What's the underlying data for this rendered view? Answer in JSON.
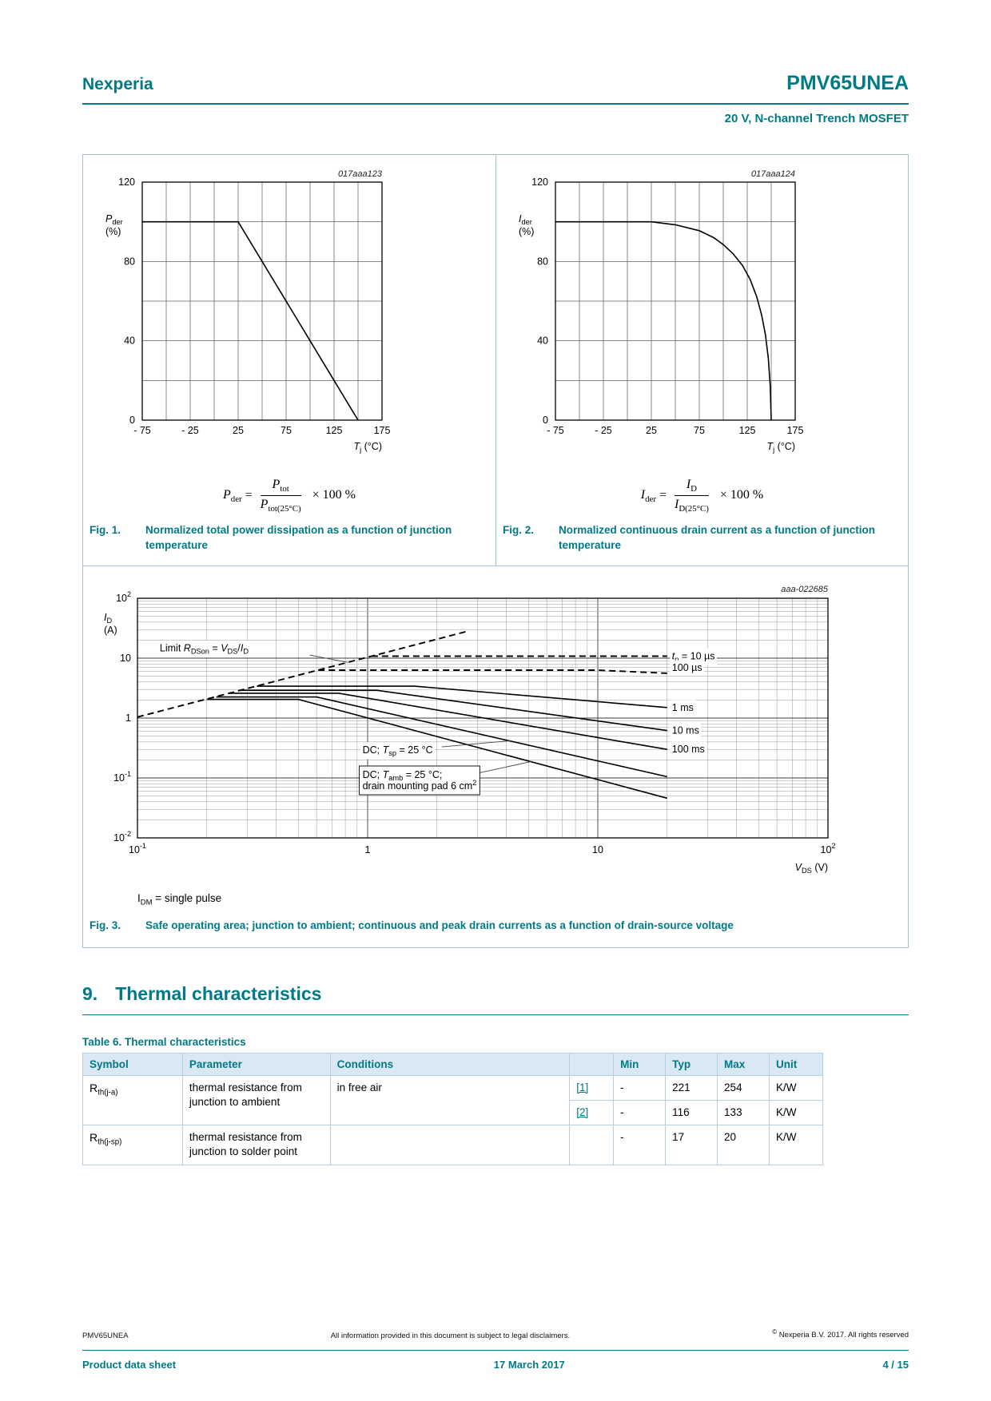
{
  "header": {
    "brand": "Nexperia",
    "part": "PMV65UNEA",
    "subtitle": "20 V, N-channel Trench MOSFET"
  },
  "figures": {
    "fig1": {
      "caption_label": "Fig. 1.",
      "caption": "Normalized total power dissipation as a function of junction temperature",
      "formula": {
        "lhs_main": "P",
        "lhs_sub": "der",
        "equals": "=",
        "num_main": "P",
        "num_sub": "tot",
        "den_main": "P",
        "den_sub": "tot(25°C)",
        "suffix": "× 100  %"
      }
    },
    "fig2": {
      "caption_label": "Fig. 2.",
      "caption": "Normalized continuous drain current as a function of junction temperature",
      "formula": {
        "lhs_main": "I",
        "lhs_sub": "der",
        "equals": "=",
        "num_main": "I",
        "num_sub": "D",
        "den_main": "I",
        "den_sub": "D(25°C)",
        "suffix": "× 100  %"
      }
    },
    "fig3": {
      "caption_label": "Fig. 3.",
      "caption": "Safe operating area; junction to ambient; continuous and peak drain currents as a function of drain-source voltage",
      "note": {
        "main": "I",
        "sub": "DM",
        "rest": " = single pulse"
      }
    }
  },
  "chart_data": [
    {
      "id": "fig1",
      "type": "line",
      "code": "017aaa123",
      "xlim": [
        -75,
        175
      ],
      "ylim": [
        0,
        120
      ],
      "xgrid_step": 25,
      "ygrid_step": 20,
      "xticks": [
        {
          "v": -75,
          "label": "- 75"
        },
        {
          "v": -25,
          "label": "- 25"
        },
        {
          "v": 25,
          "label": "25"
        },
        {
          "v": 75,
          "label": "75"
        },
        {
          "v": 125,
          "label": "125"
        },
        {
          "v": 175,
          "label": "175"
        }
      ],
      "yticks": [
        {
          "v": 0,
          "label": "0"
        },
        {
          "v": 40,
          "label": "40"
        },
        {
          "v": 80,
          "label": "80"
        },
        {
          "v": 120,
          "label": "120"
        }
      ],
      "xlabel": {
        "main": "T",
        "sub": "j",
        "unit": " (°C)"
      },
      "ylabel": {
        "main": "P",
        "sub": "der",
        "unit": "(%)"
      },
      "series": [
        {
          "name": "pder-curve",
          "dash": false,
          "points": [
            [
              -75,
              100
            ],
            [
              25,
              100
            ],
            [
              150,
              0
            ]
          ]
        }
      ]
    },
    {
      "id": "fig2",
      "type": "line",
      "code": "017aaa124",
      "xlim": [
        -75,
        175
      ],
      "ylim": [
        0,
        120
      ],
      "xgrid_step": 25,
      "ygrid_step": 20,
      "xticks": [
        {
          "v": -75,
          "label": "- 75"
        },
        {
          "v": -25,
          "label": "- 25"
        },
        {
          "v": 25,
          "label": "25"
        },
        {
          "v": 75,
          "label": "75"
        },
        {
          "v": 125,
          "label": "125"
        },
        {
          "v": 175,
          "label": "175"
        }
      ],
      "yticks": [
        {
          "v": 0,
          "label": "0"
        },
        {
          "v": 40,
          "label": "40"
        },
        {
          "v": 80,
          "label": "80"
        },
        {
          "v": 120,
          "label": "120"
        }
      ],
      "xlabel": {
        "main": "T",
        "sub": "j",
        "unit": " (°C)"
      },
      "ylabel": {
        "main": "I",
        "sub": "der",
        "unit": "(%)"
      },
      "series": [
        {
          "name": "ider-curve",
          "dash": false,
          "points": [
            [
              -75,
              100
            ],
            [
              25,
              100
            ],
            [
              50,
              98.5
            ],
            [
              75,
              95.5
            ],
            [
              90,
              92
            ],
            [
              100,
              88.5
            ],
            [
              110,
              84
            ],
            [
              120,
              78
            ],
            [
              128,
              71
            ],
            [
              135,
              62
            ],
            [
              140,
              53
            ],
            [
              144,
              43
            ],
            [
              147,
              31
            ],
            [
              149,
              17
            ],
            [
              150,
              0
            ]
          ]
        }
      ]
    },
    {
      "id": "fig3",
      "type": "loglog",
      "code": "aaa-022685",
      "xlim": [
        0.1,
        100
      ],
      "ylim": [
        0.01,
        100
      ],
      "xticks": [
        {
          "v": 0.1,
          "label": "10",
          "exp": "-1"
        },
        {
          "v": 1,
          "label": "1"
        },
        {
          "v": 10,
          "label": "10"
        },
        {
          "v": 100,
          "label": "10",
          "exp": "2"
        }
      ],
      "yticks": [
        {
          "v": 0.01,
          "label": "10",
          "exp": "-2"
        },
        {
          "v": 0.1,
          "label": "10",
          "exp": "-1"
        },
        {
          "v": 1,
          "label": "1"
        },
        {
          "v": 10,
          "label": "10"
        },
        {
          "v": 100,
          "label": "10",
          "exp": "2"
        }
      ],
      "xlabel": {
        "main": "V",
        "sub": "DS",
        "unit": " (V)"
      },
      "ylabel": {
        "main": "I",
        "sub": "D",
        "unit": "(A)"
      },
      "series": [
        {
          "name": "limit-rdson",
          "dash": true,
          "points": [
            [
              0.1,
              1.04
            ],
            [
              2.7,
              28
            ]
          ]
        },
        {
          "name": "tp-10us",
          "dash": true,
          "points": [
            [
              1.04,
              10.8
            ],
            [
              20,
              10.8
            ]
          ]
        },
        {
          "name": "tp-100us",
          "dash": true,
          "points": [
            [
              0.61,
              6.3
            ],
            [
              10,
              6.3
            ],
            [
              20,
              5.6
            ]
          ]
        },
        {
          "name": "tp-1ms",
          "dash": false,
          "points": [
            [
              0.33,
              3.4
            ],
            [
              1.6,
              3.4
            ],
            [
              20,
              1.5
            ]
          ]
        },
        {
          "name": "tp-10ms",
          "dash": false,
          "points": [
            [
              0.28,
              2.9
            ],
            [
              1.1,
              2.9
            ],
            [
              20,
              0.62
            ]
          ]
        },
        {
          "name": "tp-100ms",
          "dash": false,
          "points": [
            [
              0.25,
              2.6
            ],
            [
              0.75,
              2.6
            ],
            [
              20,
              0.3
            ]
          ]
        },
        {
          "name": "dc-tsp",
          "dash": false,
          "points": [
            [
              0.22,
              2.25
            ],
            [
              0.6,
              2.25
            ],
            [
              20,
              0.105
            ]
          ]
        },
        {
          "name": "dc-tamb",
          "dash": false,
          "points": [
            [
              0.2,
              2.05
            ],
            [
              0.5,
              2.05
            ],
            [
              20,
              0.046
            ]
          ]
        }
      ],
      "line_labels": [
        {
          "name": "label-tp-10us",
          "x": 21,
          "y": 10.8,
          "parts": [
            {
              "t": "t",
              "i": true
            },
            {
              "t": "p",
              "sub": true
            },
            {
              "t": " = 10 µs"
            }
          ]
        },
        {
          "name": "label-tp-100us",
          "x": 21,
          "y": 6.9,
          "parts": [
            {
              "t": "100 µs"
            }
          ]
        },
        {
          "name": "label-tp-1ms",
          "x": 21,
          "y": 1.5,
          "parts": [
            {
              "t": "1 ms"
            }
          ]
        },
        {
          "name": "label-tp-10ms",
          "x": 21,
          "y": 0.62,
          "parts": [
            {
              "t": "10 ms"
            }
          ]
        },
        {
          "name": "label-tp-100ms",
          "x": 21,
          "y": 0.3,
          "parts": [
            {
              "t": "100 ms"
            }
          ]
        }
      ],
      "annotations": [
        {
          "name": "ann-limit-rdson",
          "x": 0.125,
          "y": 13,
          "box": false,
          "lines": [
            [
              {
                "t": "Limit "
              },
              {
                "t": "R",
                "i": true
              },
              {
                "t": "DSon",
                "sub": true
              },
              {
                "t": " = "
              },
              {
                "t": "V",
                "i": true
              },
              {
                "t": "DS",
                "sub": true
              },
              {
                "t": "/"
              },
              {
                "t": "I",
                "i": true
              },
              {
                "t": "D",
                "sub": true
              }
            ]
          ],
          "leader": [
            [
              0.56,
              11.3
            ],
            [
              0.82,
              8.5
            ]
          ]
        },
        {
          "name": "ann-dc-tsp",
          "x": 0.95,
          "y": 0.26,
          "box": false,
          "lines": [
            [
              {
                "t": "DC; "
              },
              {
                "t": "T",
                "i": true
              },
              {
                "t": "sp",
                "sub": true
              },
              {
                "t": " = 25 °C"
              }
            ]
          ],
          "leader": [
            [
              2.1,
              0.33
            ],
            [
              4.2,
              0.42
            ]
          ]
        },
        {
          "name": "ann-dc-tamb",
          "x": 0.95,
          "y": 0.1,
          "box": true,
          "lines": [
            [
              {
                "t": "DC; "
              },
              {
                "t": "T",
                "i": true
              },
              {
                "t": "amb",
                "sub": true
              },
              {
                "t": " = 25 °C;"
              }
            ],
            [
              {
                "t": "drain mounting pad 6 cm"
              },
              {
                "t": "2",
                "sup": true
              }
            ]
          ],
          "leader": [
            [
              3.0,
              0.12
            ],
            [
              5.2,
              0.19
            ]
          ]
        }
      ]
    }
  ],
  "section9": {
    "number": "9.",
    "title": "Thermal characteristics"
  },
  "table6": {
    "caption": "Table 6. Thermal characteristics",
    "headers": [
      "Symbol",
      "Parameter",
      "Conditions",
      "",
      "Min",
      "Typ",
      "Max",
      "Unit"
    ],
    "rows": [
      {
        "symbol": {
          "main": "R",
          "sub": "th(j-a)"
        },
        "parameter": "thermal resistance from junction to ambient",
        "conditions": [
          {
            "text": "in free air",
            "ref": "[1]",
            "min": "-",
            "typ": "221",
            "max": "254",
            "unit": "K/W"
          },
          {
            "text": "",
            "ref": "[2]",
            "min": "-",
            "typ": "116",
            "max": "133",
            "unit": "K/W"
          }
        ]
      },
      {
        "symbol": {
          "main": "R",
          "sub": "th(j-sp)"
        },
        "parameter": "thermal resistance from junction to solder point",
        "conditions": [
          {
            "text": "",
            "ref": "",
            "min": "-",
            "typ": "17",
            "max": "20",
            "unit": "K/W"
          }
        ]
      }
    ]
  },
  "footer": {
    "doc_id": "PMV65UNEA",
    "disclaimer": "All information provided in this document is subject to legal disclaimers.",
    "copyright_symbol": "©",
    "copyright_text": " Nexperia B.V. 2017. All rights reserved",
    "type": "Product data sheet",
    "date": "17 March 2017",
    "page": "4 / 15"
  }
}
